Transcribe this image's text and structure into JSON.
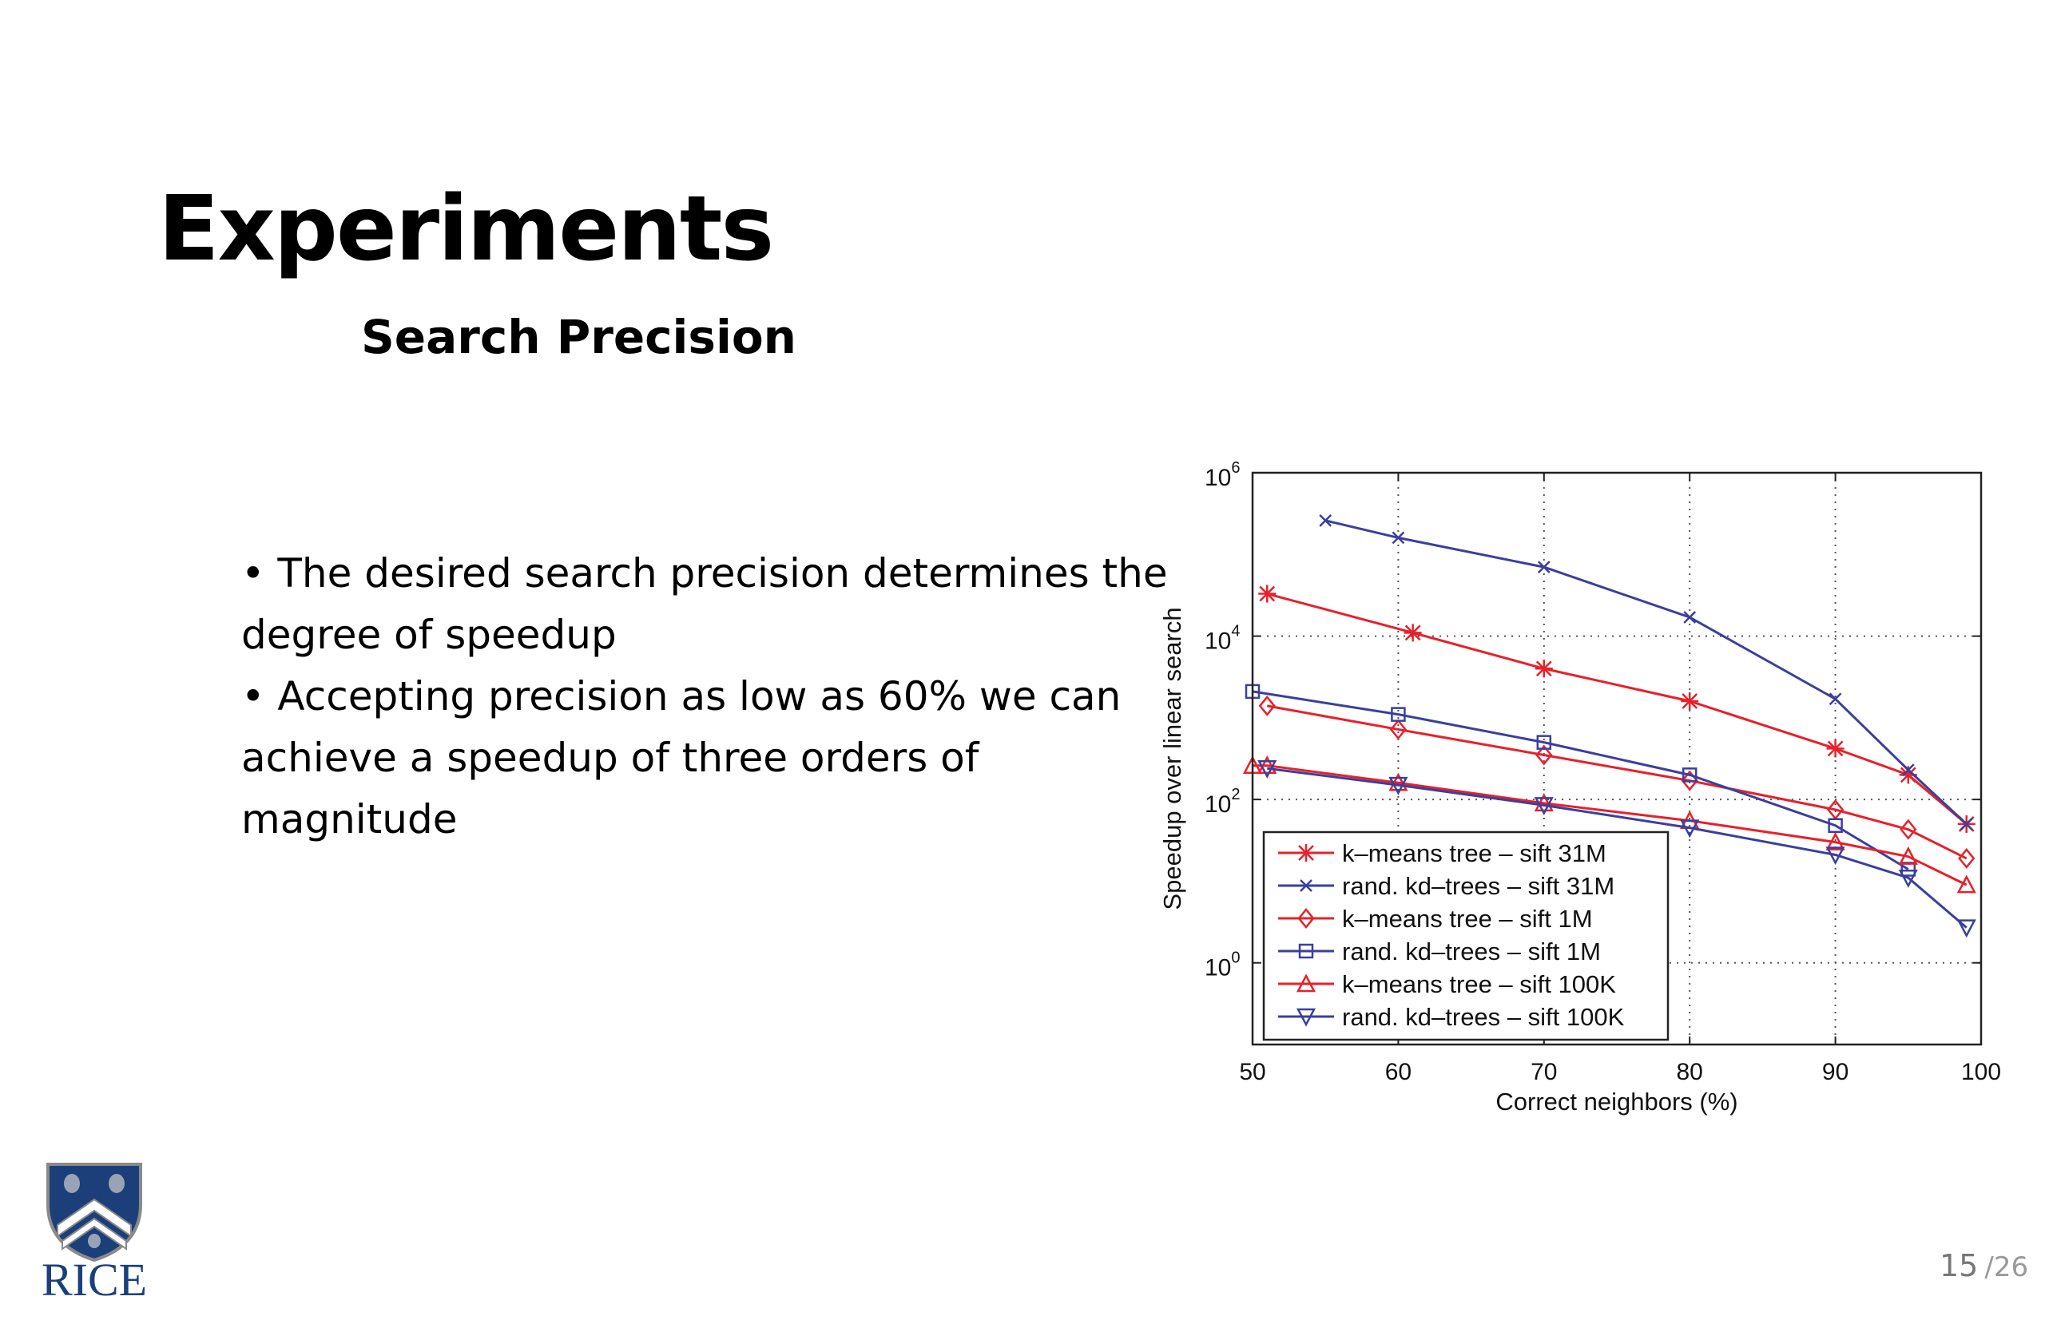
{
  "slide": {
    "title": "Experiments",
    "subtitle": "Search Precision",
    "bullets": [
      "The desired search precision determines the degree of speedup",
      "Accepting precision as low as 60% we can achieve a speedup of three orders of magnitude"
    ],
    "page_number": "15",
    "page_total": "/26",
    "logo_text": "RICE"
  },
  "chart_data": {
    "type": "line",
    "xlabel": "Correct neighbors (%)",
    "ylabel": "Speedup over linear search",
    "xlim": [
      50,
      100
    ],
    "ylim": [
      0.1,
      1000000
    ],
    "yscale": "log",
    "x_ticks": [
      "50",
      "60",
      "70",
      "80",
      "90",
      "100"
    ],
    "y_ticks": [
      {
        "base": "10",
        "exp": "0",
        "value": 1
      },
      {
        "base": "10",
        "exp": "2",
        "value": 100
      },
      {
        "base": "10",
        "exp": "4",
        "value": 10000
      },
      {
        "base": "10",
        "exp": "6",
        "value": 1000000
      }
    ],
    "grid": true,
    "legend_position": "bottom-left",
    "series": [
      {
        "name": "k–means tree – sift 31M",
        "color": "#e8202a",
        "marker": "star",
        "x": [
          51,
          61,
          70,
          80,
          90,
          95,
          99
        ],
        "y": [
          33000,
          11000,
          4000,
          1600,
          420,
          200,
          50
        ]
      },
      {
        "name": "rand. kd–trees – sift 31M",
        "color": "#3a3f9e",
        "marker": "x",
        "x": [
          55,
          60,
          70,
          80,
          90,
          95,
          99
        ],
        "y": [
          260000,
          160000,
          70000,
          17000,
          1700,
          230,
          50
        ]
      },
      {
        "name": "k–means tree – sift 1M",
        "color": "#e8202a",
        "marker": "diamond",
        "x": [
          51,
          60,
          70,
          80,
          90,
          95,
          99
        ],
        "y": [
          1400,
          720,
          350,
          170,
          75,
          43,
          19
        ]
      },
      {
        "name": "rand. kd–trees – sift 1M",
        "color": "#3a3f9e",
        "marker": "square",
        "x": [
          50,
          60,
          70,
          80,
          90,
          95
        ],
        "y": [
          2100,
          1100,
          500,
          200,
          48,
          14
        ]
      },
      {
        "name": "k–means tree – sift 100K",
        "color": "#e8202a",
        "marker": "triangle-up",
        "x": [
          50,
          51,
          60,
          70,
          80,
          90,
          95,
          99
        ],
        "y": [
          260,
          260,
          160,
          90,
          55,
          30,
          20,
          9
        ]
      },
      {
        "name": "rand. kd–trees – sift 100K",
        "color": "#3a3f9e",
        "marker": "triangle-down",
        "x": [
          51,
          60,
          70,
          80,
          90,
          95,
          99
        ],
        "y": [
          240,
          150,
          85,
          45,
          21,
          11,
          2.7
        ]
      }
    ]
  }
}
